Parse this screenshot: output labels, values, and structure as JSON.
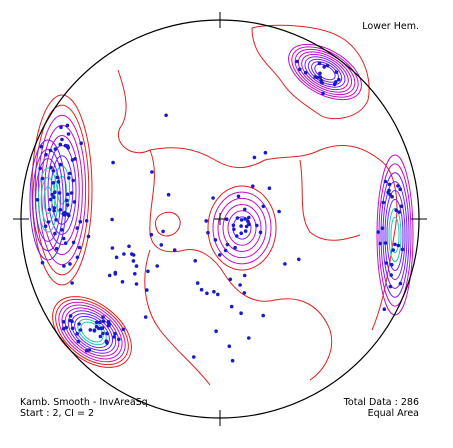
{
  "labels": {
    "hemisphere": "Lower Hem.",
    "method": "Kamb. Smooth - InvAreaSq",
    "contour_params": "Start : 2, CI = 2",
    "total": "Total Data : 286",
    "projection": "Equal Area"
  },
  "colors": {
    "background": "#ffffff",
    "primitive_circle": "#000000",
    "data_points": "#1a1ac8",
    "contour_low": "#e02020",
    "contour_mid": "#c010c8",
    "contour_high": "#7020ff",
    "contour_peak": "#20c8b0"
  }
}
